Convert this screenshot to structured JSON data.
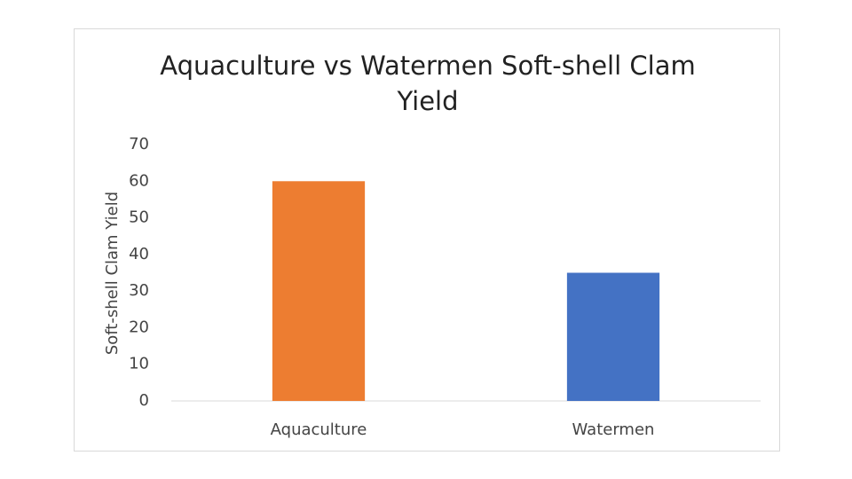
{
  "chart_data": {
    "type": "bar",
    "title": "Aquaculture vs Watermen Soft-shell Clam Yield",
    "y_label": "Soft-shell Clam Yield",
    "categories": [
      "Aquaculture",
      "Watermen"
    ],
    "values": [
      60,
      35
    ],
    "colors": [
      "#ed7d31",
      "#4472c4"
    ],
    "ylim": [
      0,
      70
    ],
    "yticks": [
      0,
      10,
      20,
      30,
      40,
      50,
      60,
      70
    ],
    "grid": false
  }
}
